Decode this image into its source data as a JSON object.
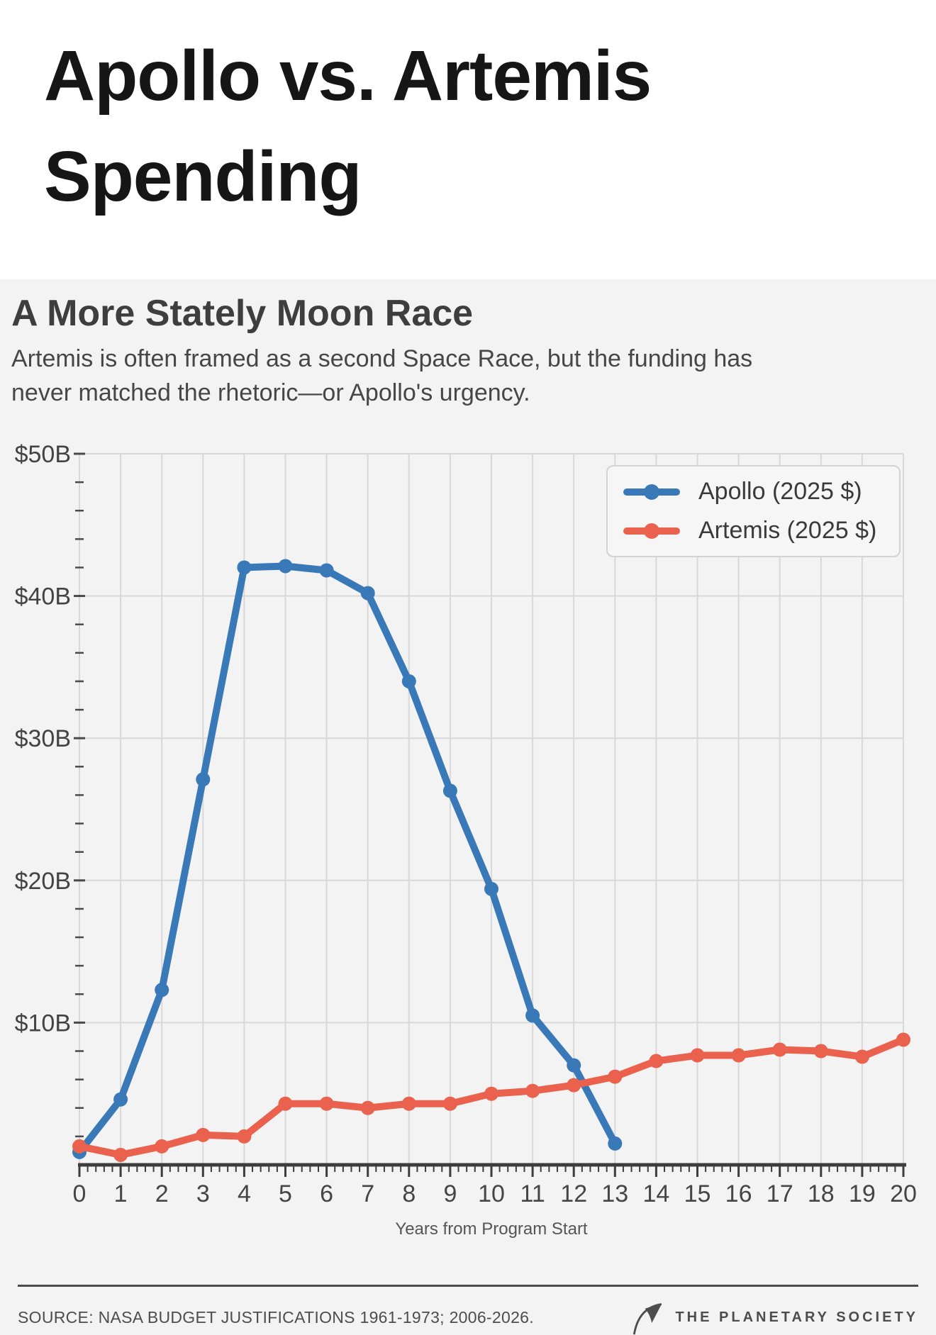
{
  "header": {
    "title": "Apollo vs. Artemis Spending"
  },
  "intro": {
    "heading": "A More Stately Moon Race",
    "body": "Artemis is often framed as a second Space Race, but the funding has never matched the rhetoric—or Apollo's urgency."
  },
  "chart_data": {
    "type": "line",
    "title": "Apollo vs. Artemis Spending",
    "xlabel": "Years from Program Start",
    "ylabel": "",
    "xlim": [
      0,
      20
    ],
    "ylim": [
      0,
      50
    ],
    "grid": true,
    "legend_position": "top-right",
    "x": [
      0,
      1,
      2,
      3,
      4,
      5,
      6,
      7,
      8,
      9,
      10,
      11,
      12,
      13,
      14,
      15,
      16,
      17,
      18,
      19,
      20
    ],
    "y_ticks": [
      {
        "v": 10,
        "label": "$10B"
      },
      {
        "v": 20,
        "label": "$20B"
      },
      {
        "v": 30,
        "label": "$30B"
      },
      {
        "v": 40,
        "label": "$40B"
      },
      {
        "v": 50,
        "label": "$50B"
      }
    ],
    "y_minor_step": 2,
    "x_minor_divisions": 5,
    "series": [
      {
        "name": "Apollo (2025 $)",
        "color": "#3a79b8",
        "x": [
          0,
          1,
          2,
          3,
          4,
          5,
          6,
          7,
          8,
          9,
          10,
          11,
          12,
          13
        ],
        "values": [
          0.9,
          4.6,
          12.3,
          27.1,
          42.0,
          42.1,
          41.8,
          40.2,
          34.0,
          26.3,
          19.4,
          10.5,
          7.0,
          1.5
        ]
      },
      {
        "name": "Artemis (2025 $)",
        "color": "#ea614d",
        "x": [
          0,
          1,
          2,
          3,
          4,
          5,
          6,
          7,
          8,
          9,
          10,
          11,
          12,
          13,
          14,
          15,
          16,
          17,
          18,
          19,
          20
        ],
        "values": [
          1.3,
          0.7,
          1.3,
          2.1,
          2.0,
          4.3,
          4.3,
          4.0,
          4.3,
          4.3,
          5.0,
          5.2,
          5.6,
          6.2,
          7.3,
          7.7,
          7.7,
          8.1,
          8.0,
          7.6,
          8.8
        ]
      }
    ],
    "colors": {
      "grid": "#d8d8d8",
      "axis": "#3d3d3d",
      "tick_label": "#434343",
      "axis_title": "#555555",
      "background": "#f3f3f3"
    }
  },
  "footer": {
    "source": "SOURCE: NASA BUDGET JUSTIFICATIONS 1961-1973; 2006-2026.",
    "brand": "THE PLANETARY SOCIETY"
  }
}
